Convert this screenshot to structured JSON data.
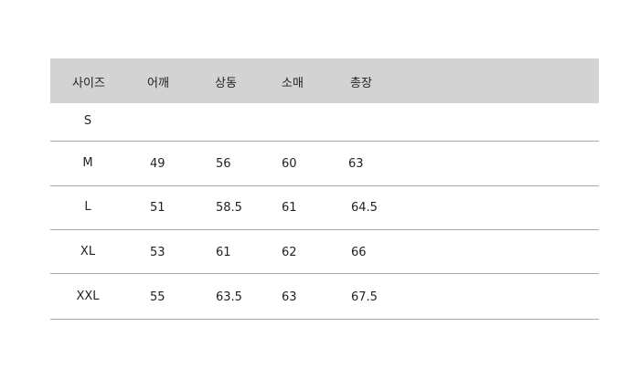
{
  "headers": [
    "사이즈",
    "어깨",
    "상동",
    "소매",
    "총장"
  ],
  "rows": [
    {
      "size": "S",
      "values": [
        "",
        "",
        "",
        ""
      ]
    },
    {
      "size": "M",
      "values": [
        "49",
        "56",
        "60",
        "63"
      ]
    },
    {
      "size": "L",
      "values": [
        "51",
        "58.5",
        "61",
        "64.5"
      ]
    },
    {
      "size": "XL",
      "values": [
        "53",
        "61",
        "62",
        "66"
      ]
    },
    {
      "size": "XXL",
      "values": [
        "55",
        "63.5",
        "63",
        "67.5"
      ]
    }
  ]
}
